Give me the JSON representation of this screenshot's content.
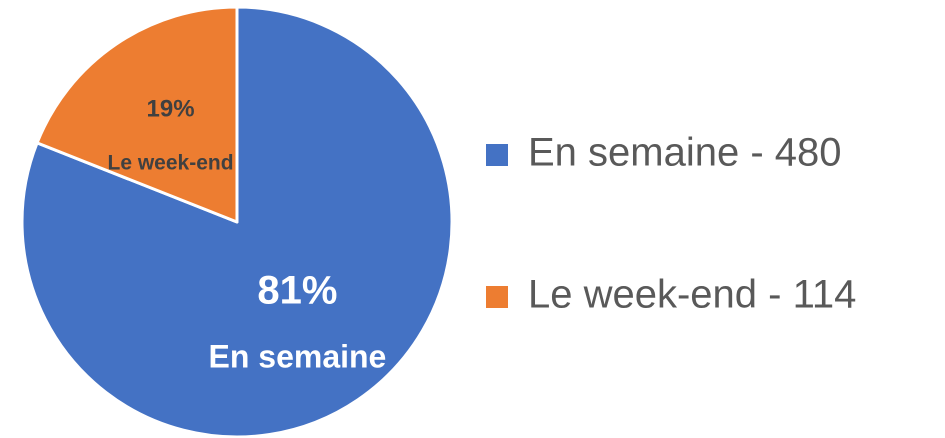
{
  "chart_data": {
    "type": "pie",
    "categories": [
      "En semaine",
      "Le week-end"
    ],
    "values": [
      81,
      19
    ],
    "value_labels": [
      "81%",
      "19%"
    ],
    "colors": [
      "#4472c4",
      "#ed7d31"
    ],
    "legend_labels": [
      "En semaine - 480",
      "Le week-end - 114"
    ],
    "legend": "right"
  }
}
